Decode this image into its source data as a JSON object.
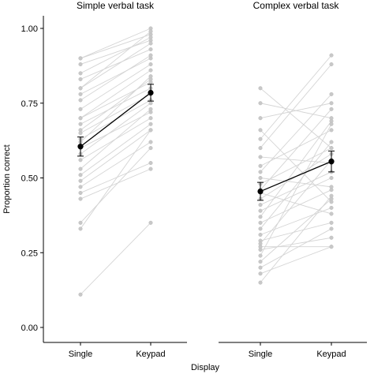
{
  "chart_data": {
    "type": "line",
    "xlabel": "Display",
    "ylabel": "Proportion correct",
    "ylim": [
      0,
      1
    ],
    "yticks": [
      "0.00",
      "0.25",
      "0.50",
      "0.75",
      "1.00"
    ],
    "ytick_values": [
      0,
      0.25,
      0.5,
      0.75,
      1.0
    ],
    "categories": [
      "Single",
      "Keypad"
    ],
    "grid": false,
    "panels": [
      {
        "title": "Simple verbal task",
        "mean": [
          0.605,
          0.785
        ],
        "error": [
          0.032,
          0.028
        ],
        "subjects": [
          [
            0.9,
            1.0
          ],
          [
            0.9,
            0.98
          ],
          [
            0.88,
            0.96
          ],
          [
            0.85,
            0.97
          ],
          [
            0.83,
            0.93
          ],
          [
            0.8,
            0.99
          ],
          [
            0.8,
            0.95
          ],
          [
            0.78,
            0.9
          ],
          [
            0.76,
            0.91
          ],
          [
            0.73,
            0.88
          ],
          [
            0.7,
            0.86
          ],
          [
            0.7,
            0.82
          ],
          [
            0.68,
            0.8
          ],
          [
            0.66,
            0.83
          ],
          [
            0.65,
            0.78
          ],
          [
            0.63,
            0.76
          ],
          [
            0.62,
            0.84
          ],
          [
            0.6,
            0.72
          ],
          [
            0.58,
            0.75
          ],
          [
            0.56,
            0.7
          ],
          [
            0.53,
            0.73
          ],
          [
            0.51,
            0.68
          ],
          [
            0.49,
            0.66
          ],
          [
            0.47,
            0.62
          ],
          [
            0.45,
            0.55
          ],
          [
            0.43,
            0.53
          ],
          [
            0.35,
            0.6
          ],
          [
            0.33,
            0.66
          ],
          [
            0.11,
            0.35
          ]
        ]
      },
      {
        "title": "Complex verbal task",
        "mean": [
          0.455,
          0.555
        ],
        "error": [
          0.03,
          0.035
        ],
        "subjects": [
          [
            0.8,
            0.6
          ],
          [
            0.75,
            0.7
          ],
          [
            0.7,
            0.75
          ],
          [
            0.66,
            0.42
          ],
          [
            0.63,
            0.91
          ],
          [
            0.6,
            0.88
          ],
          [
            0.57,
            0.55
          ],
          [
            0.54,
            0.66
          ],
          [
            0.52,
            0.78
          ],
          [
            0.5,
            0.47
          ],
          [
            0.48,
            0.6
          ],
          [
            0.46,
            0.73
          ],
          [
            0.45,
            0.38
          ],
          [
            0.43,
            0.58
          ],
          [
            0.41,
            0.52
          ],
          [
            0.39,
            0.5
          ],
          [
            0.37,
            0.69
          ],
          [
            0.35,
            0.46
          ],
          [
            0.33,
            0.62
          ],
          [
            0.31,
            0.4
          ],
          [
            0.29,
            0.35
          ],
          [
            0.28,
            0.56
          ],
          [
            0.27,
            0.27
          ],
          [
            0.26,
            0.3
          ],
          [
            0.24,
            0.68
          ],
          [
            0.22,
            0.43
          ],
          [
            0.2,
            0.33
          ],
          [
            0.18,
            0.27
          ],
          [
            0.15,
            0.44
          ]
        ]
      }
    ]
  }
}
